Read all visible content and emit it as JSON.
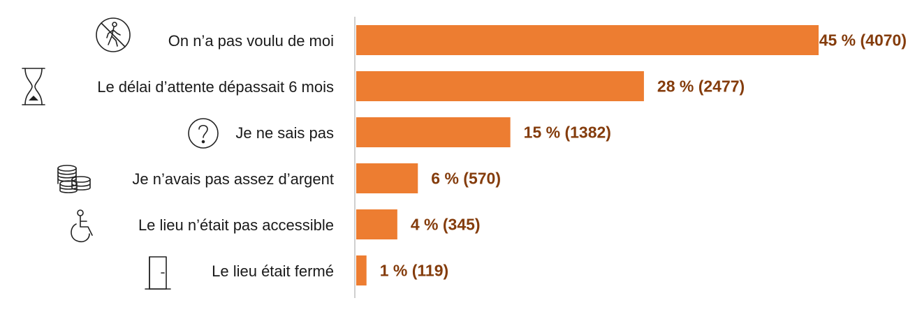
{
  "chart_data": {
    "type": "bar",
    "orientation": "horizontal",
    "categories": [
      "On n’a pas voulu de moi",
      "Le délai d’attente dépassait 6 mois",
      "Je ne sais pas",
      "Je n’avais pas assez d’argent",
      "Le lieu n’était pas accessible",
      "Le lieu était fermé"
    ],
    "values": [
      45,
      28,
      15,
      6,
      4,
      1
    ],
    "counts": [
      4070,
      2477,
      1382,
      570,
      345,
      119
    ],
    "data_labels": [
      "45 % (4070)",
      "28 % (2477)",
      "15 % (1382)",
      "6 % (570)",
      "4 % (345)",
      "1 % (119)"
    ],
    "icons": [
      "no-walking-icon",
      "hourglass-icon",
      "question-mark-icon",
      "coins-icon",
      "wheelchair-icon",
      "closed-door-icon"
    ],
    "title": "",
    "xlabel": "",
    "ylabel": "",
    "xlim": [
      0,
      45
    ],
    "grid": false,
    "legend": "none",
    "bar_color": "#ed7d31",
    "label_color": "#843c0c",
    "axis_color": "#bfbfbf"
  }
}
